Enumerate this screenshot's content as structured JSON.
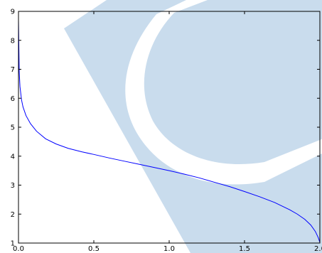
{
  "chart_data": {
    "type": "line",
    "title": "",
    "xlabel": "",
    "ylabel": "",
    "xlim": [
      0.0,
      2.0
    ],
    "ylim": [
      1,
      9
    ],
    "grid": false,
    "x_tick_labels": [
      "0.0",
      "0.5",
      "1.0",
      "1.5",
      "2.0"
    ],
    "x_tick_values": [
      0.0,
      0.5,
      1.0,
      1.5,
      2.0
    ],
    "y_tick_labels": [
      "1",
      "2",
      "3",
      "4",
      "5",
      "6",
      "7",
      "8",
      "9"
    ],
    "y_tick_values": [
      1,
      2,
      3,
      4,
      5,
      6,
      7,
      8,
      9
    ],
    "series": [
      {
        "color": "#0000ff",
        "x": [
          0.0,
          0.005,
          0.01,
          0.02,
          0.03,
          0.05,
          0.08,
          0.12,
          0.18,
          0.25,
          0.33,
          0.42,
          0.5,
          0.6,
          0.7,
          0.8,
          0.9,
          1.0,
          1.1,
          1.2,
          1.3,
          1.4,
          1.5,
          1.6,
          1.7,
          1.8,
          1.85,
          1.9,
          1.94,
          1.97,
          1.99,
          2.0
        ],
        "y": [
          8.7,
          6.9,
          6.4,
          5.95,
          5.7,
          5.4,
          5.12,
          4.86,
          4.6,
          4.42,
          4.27,
          4.15,
          4.06,
          3.94,
          3.83,
          3.72,
          3.61,
          3.5,
          3.38,
          3.25,
          3.1,
          2.95,
          2.78,
          2.6,
          2.4,
          2.15,
          2.0,
          1.82,
          1.62,
          1.4,
          1.18,
          1.02
        ]
      }
    ],
    "background_shape_color": "#c9dced"
  }
}
